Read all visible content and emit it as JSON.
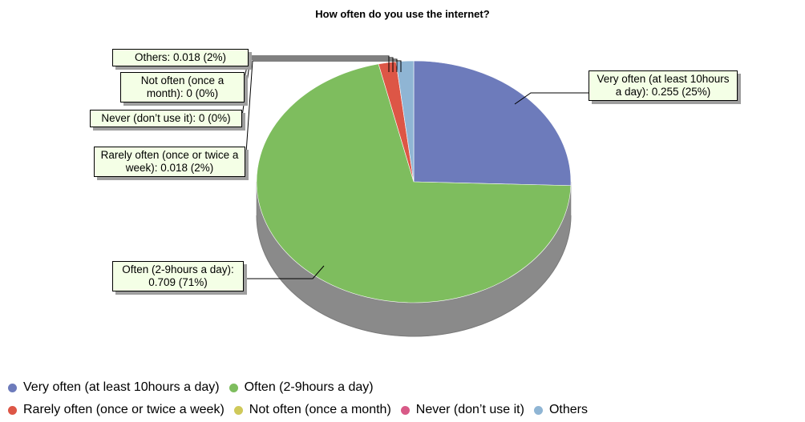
{
  "chart_data": {
    "type": "pie",
    "title": "How often do you use the internet?",
    "slices": [
      {
        "label": "Very often (at least 10hours a day)",
        "value": 0.255,
        "percent": "25%",
        "color": "#6d7bbb",
        "callout": "Very often (at least 10hours a day): 0.255 (25%)"
      },
      {
        "label": "Often (2-9hours a day)",
        "value": 0.709,
        "percent": "71%",
        "color": "#7ebd5e",
        "callout": "Often (2-9hours a day): 0.709 (71%)"
      },
      {
        "label": "Rarely often (once or twice a week)",
        "value": 0.018,
        "percent": "2%",
        "color": "#dd5646",
        "callout": "Rarely often (once or twice a week): 0.018 (2%)"
      },
      {
        "label": "Not often (once a month)",
        "value": 0,
        "percent": "0%",
        "color": "#cfc95a",
        "callout": "Not often (once a month): 0 (0%)"
      },
      {
        "label": "Never (don’t use it)",
        "value": 0,
        "percent": "0%",
        "color": "#d85a87",
        "callout": "Never (don’t use it): 0 (0%)"
      },
      {
        "label": "Others",
        "value": 0.018,
        "percent": "2%",
        "color": "#8fb5d4",
        "callout": "Others: 0.018 (2%)"
      }
    ],
    "legend_placement": "bottom"
  }
}
